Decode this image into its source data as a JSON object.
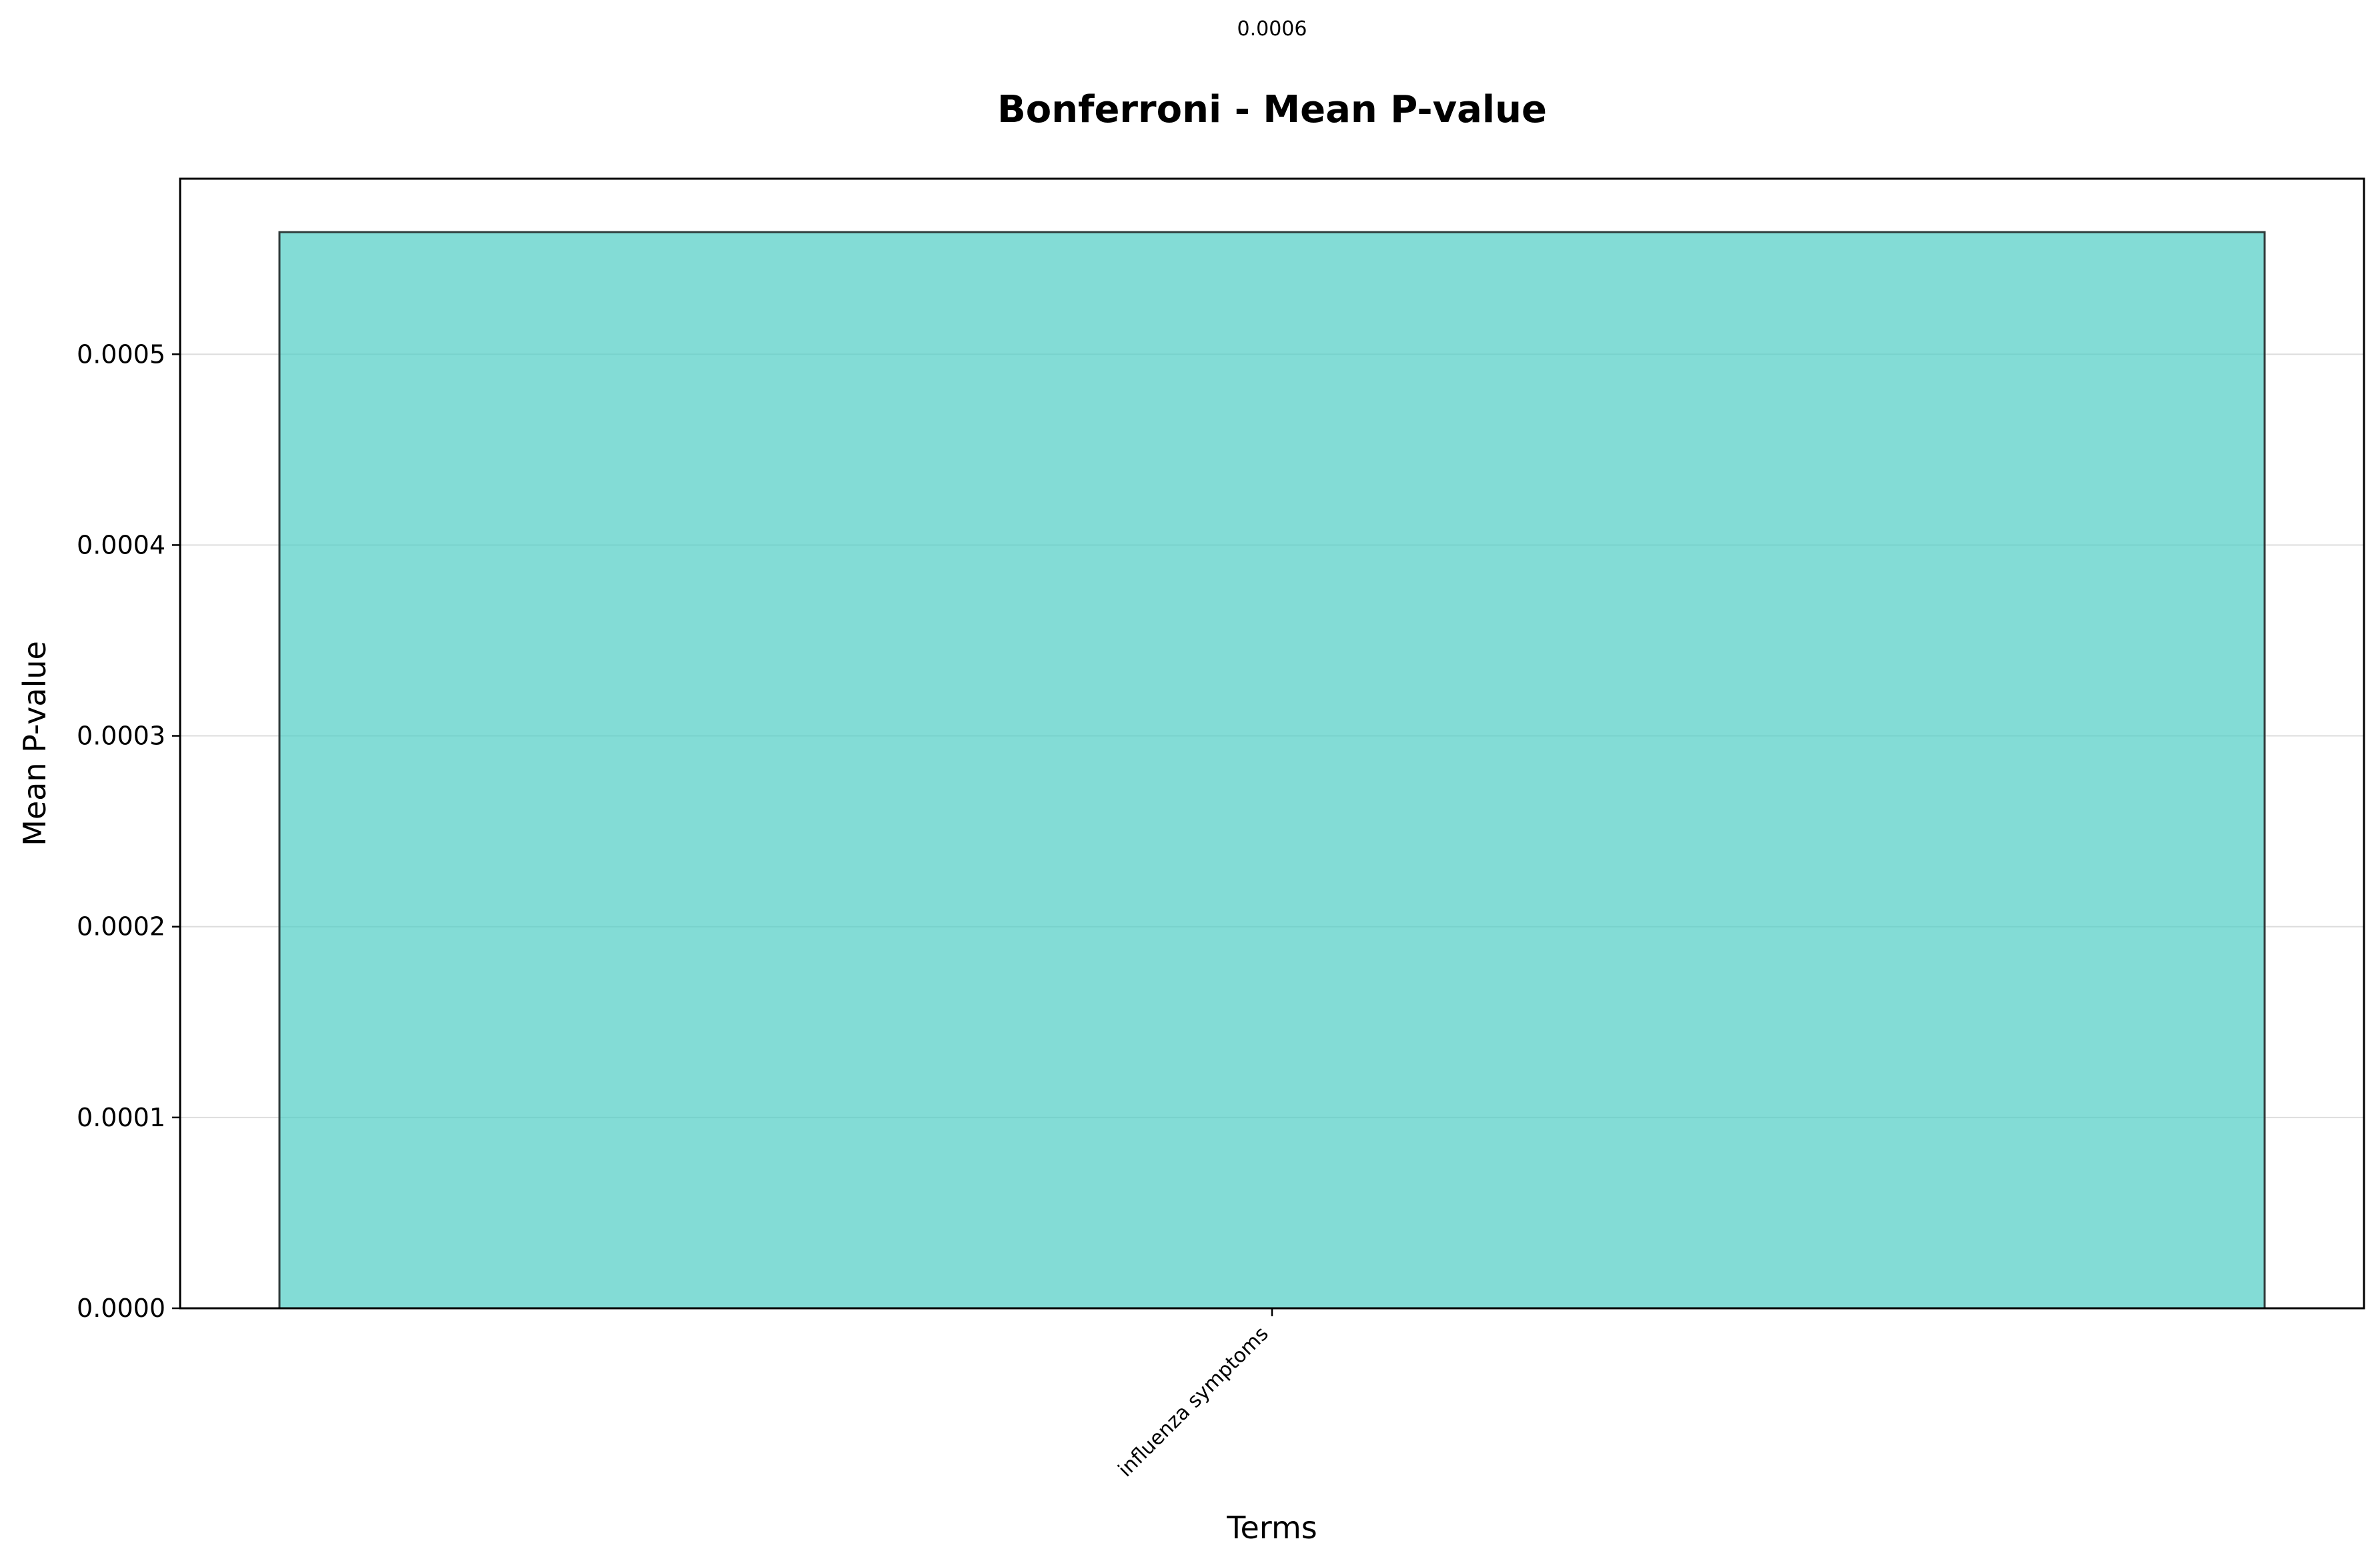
{
  "chart_data": {
    "type": "bar",
    "title": "Bonferroni - Mean P-value",
    "xlabel": "Terms",
    "ylabel": "Mean P-value",
    "categories": [
      "influenza symptoms"
    ],
    "values": [
      0.000564
    ],
    "data_labels": [
      "0.0006"
    ],
    "ylim": [
      0,
      0.000592
    ],
    "yticks": [
      0,
      0.0001,
      0.0002,
      0.0003,
      0.0004,
      0.0005
    ],
    "ytick_labels": [
      "0.0000",
      "0.0001",
      "0.0002",
      "0.0003",
      "0.0004",
      "0.0005"
    ],
    "grid": "y",
    "legend": "none",
    "colors": {
      "bar_fill": "#4ECDC4",
      "bar_edge": "#2F3B3B",
      "axes": "#000000",
      "grid": "#DDDDDD"
    }
  }
}
